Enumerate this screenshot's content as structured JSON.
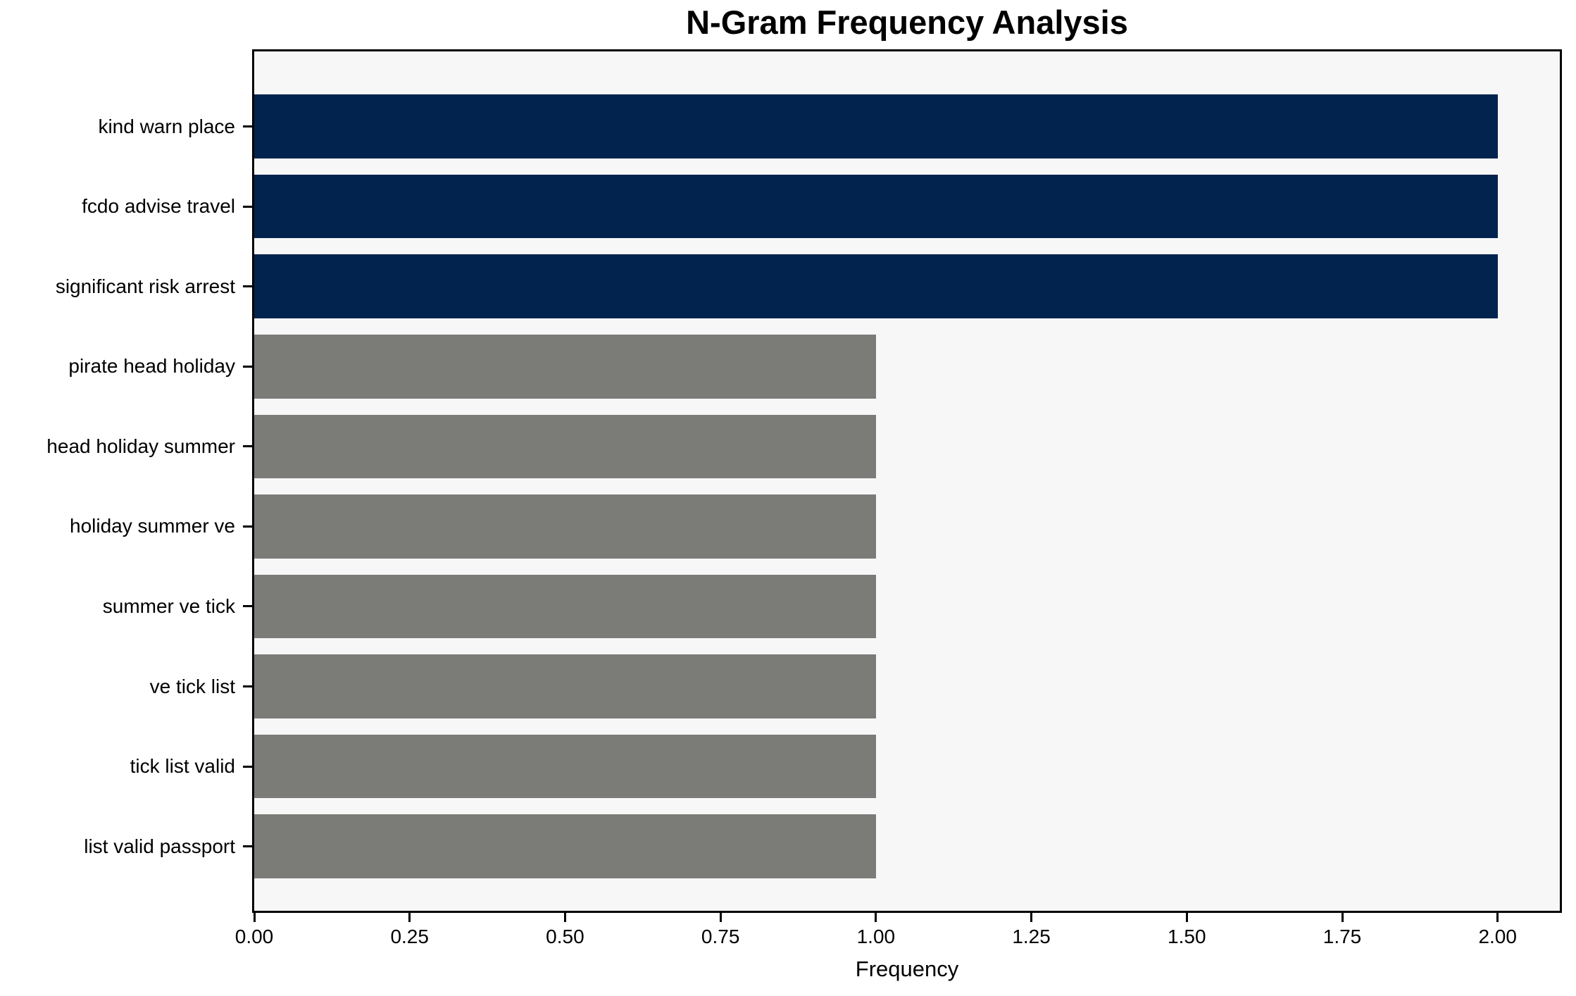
{
  "chart_data": {
    "type": "bar",
    "orientation": "horizontal",
    "title": "N-Gram Frequency Analysis",
    "xlabel": "Frequency",
    "ylabel": "",
    "categories": [
      "kind warn place",
      "fcdo advise travel",
      "significant risk arrest",
      "pirate head holiday",
      "head holiday summer",
      "holiday summer ve",
      "summer ve tick",
      "ve tick list",
      "tick list valid",
      "list valid passport"
    ],
    "values": [
      2,
      2,
      2,
      1,
      1,
      1,
      1,
      1,
      1,
      1
    ],
    "bar_colors": [
      "#02234d",
      "#02234d",
      "#02234d",
      "#7b7b78",
      "#7b7b78",
      "#7b7b78",
      "#7b7b78",
      "#7b7b78",
      "#7b7b78",
      "#7b7b78"
    ],
    "xlim": [
      0,
      2.1
    ],
    "x_tick_values": [
      0,
      0.25,
      0.5,
      0.75,
      1.0,
      1.25,
      1.5,
      1.75,
      2.0
    ],
    "x_tick_labels": [
      "0.00",
      "0.25",
      "0.50",
      "0.75",
      "1.00",
      "1.25",
      "1.50",
      "1.75",
      "2.00"
    ],
    "grid": false,
    "legend": null,
    "colors": {
      "highlight_bar": "#02234d",
      "normal_bar": "#7b7b78",
      "plot_background": "#f7f7f7",
      "figure_background": "#ffffff",
      "spine": "#000000",
      "text": "#000000"
    }
  }
}
